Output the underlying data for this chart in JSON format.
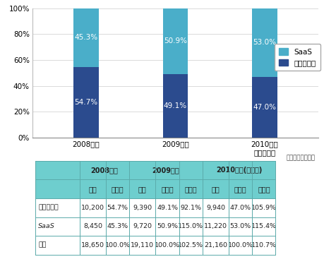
{
  "categories": [
    "2008年度",
    "2009年度",
    "2010年度\n（予測値）"
  ],
  "package_pct": [
    54.7,
    49.1,
    47.0
  ],
  "saas_pct": [
    45.3,
    50.9,
    53.0
  ],
  "color_package": "#2B4B8E",
  "color_saas": "#4AAEC9",
  "legend_saas": "SaaS",
  "legend_package": "パッケージ",
  "yticks": [
    0,
    20,
    40,
    60,
    80,
    100
  ],
  "ytick_labels": [
    "0%",
    "20%",
    "40%",
    "60%",
    "80%",
    "100%"
  ],
  "unit_label": "（単位：百万円）",
  "sub_headers": [
    "",
    "金額",
    "シェア",
    "金額",
    "シェア",
    "前年比",
    "金額",
    "シェア",
    "前年比"
  ],
  "table_rows": [
    [
      "パッケージ",
      "10,200",
      "54.7%",
      "9,390",
      "49.1%",
      "92.1%",
      "9,940",
      "47.0%",
      "105.9%"
    ],
    [
      "SaaS",
      "8,450",
      "45.3%",
      "9,720",
      "50.9%",
      "115.0%",
      "11,220",
      "53.0%",
      "115.4%"
    ],
    [
      "合計",
      "18,650",
      "100.0%",
      "19,110",
      "100.0%",
      "102.5%",
      "21,160",
      "100.0%",
      "110.7%"
    ]
  ],
  "header1_labels": [
    "2008年度",
    "2009年度",
    "2010年度(予測値)"
  ],
  "header_bg": "#6ECECE",
  "header_text": "#333333",
  "row_bg": "#FFFFFF",
  "border_color": "#5BAAAA",
  "background_color": "#FFFFFF",
  "table_left_label_italic": true
}
